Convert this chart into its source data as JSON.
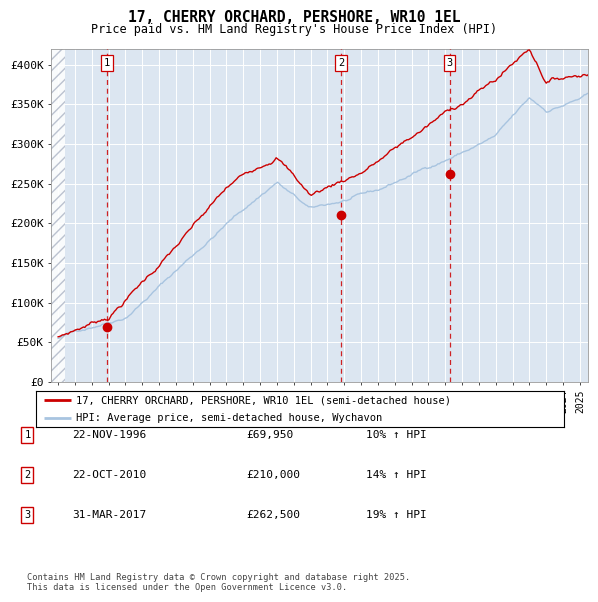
{
  "title": "17, CHERRY ORCHARD, PERSHORE, WR10 1EL",
  "subtitle": "Price paid vs. HM Land Registry's House Price Index (HPI)",
  "ylim": [
    0,
    420000
  ],
  "yticks": [
    0,
    50000,
    100000,
    150000,
    200000,
    250000,
    300000,
    350000,
    400000
  ],
  "ytick_labels": [
    "£0",
    "£50K",
    "£100K",
    "£150K",
    "£200K",
    "£250K",
    "£300K",
    "£350K",
    "£400K"
  ],
  "hpi_color": "#a8c4e0",
  "price_color": "#cc0000",
  "background_color": "#dce6f1",
  "grid_color": "#ffffff",
  "sale_dates": [
    1996.9,
    2010.8,
    2017.25
  ],
  "sale_prices": [
    69950,
    210000,
    262500
  ],
  "sale_labels": [
    "1",
    "2",
    "3"
  ],
  "legend_line1": "17, CHERRY ORCHARD, PERSHORE, WR10 1EL (semi-detached house)",
  "legend_line2": "HPI: Average price, semi-detached house, Wychavon",
  "table_rows": [
    [
      "1",
      "22-NOV-1996",
      "£69,950",
      "10% ↑ HPI"
    ],
    [
      "2",
      "22-OCT-2010",
      "£210,000",
      "14% ↑ HPI"
    ],
    [
      "3",
      "31-MAR-2017",
      "£262,500",
      "19% ↑ HPI"
    ]
  ],
  "footer": "Contains HM Land Registry data © Crown copyright and database right 2025.\nThis data is licensed under the Open Government Licence v3.0.",
  "xlim_start": 1993.6,
  "xlim_end": 2025.5,
  "hatch_end": 1994.42
}
